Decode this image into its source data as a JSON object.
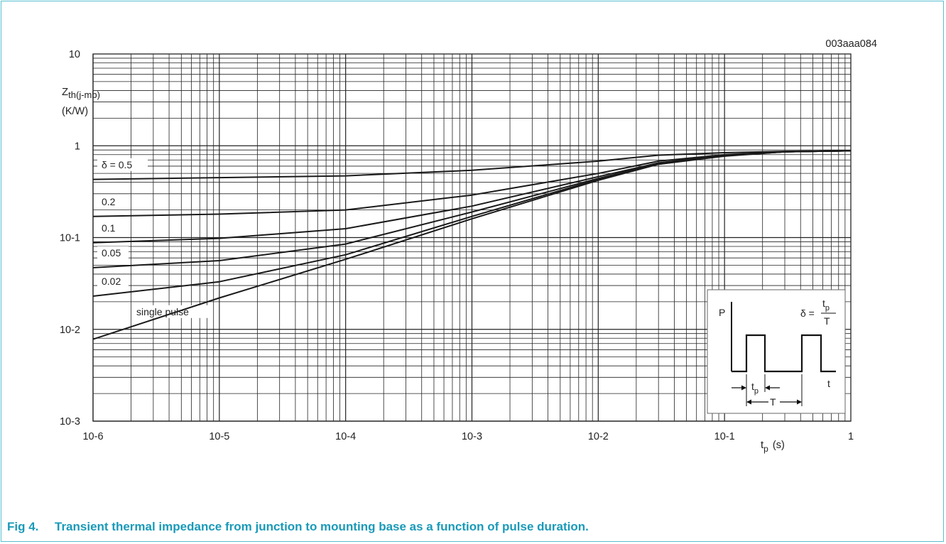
{
  "figure_id": "003aaa084",
  "caption": {
    "number": "Fig 4.",
    "text": "Transient thermal impedance from junction to mounting base as a function of pulse duration."
  },
  "inset": {
    "p_label": "P",
    "t_label": "t",
    "tp_label": "t",
    "tp_sub": "p",
    "T_label": "T",
    "delta_symbol": "δ =",
    "frac_num": "t",
    "frac_num_sub": "p",
    "frac_den": "T"
  },
  "chart_data": {
    "type": "line",
    "title": "",
    "xlabel": "t",
    "xlabel_sub": "p",
    "xlabel_unit": "(s)",
    "ylabel": "Z",
    "ylabel_sub": "th(j-mb)",
    "ylabel_unit": "(K/W)",
    "x_scale": "log",
    "y_scale": "log",
    "xlim": [
      1e-06,
      1
    ],
    "ylim": [
      0.001,
      10
    ],
    "grid": true,
    "x_ticks": [
      {
        "value": 1e-06,
        "base": "10",
        "exp": "-6"
      },
      {
        "value": 1e-05,
        "base": "10",
        "exp": "-5"
      },
      {
        "value": 0.0001,
        "base": "10",
        "exp": "-4"
      },
      {
        "value": 0.001,
        "base": "10",
        "exp": "-3"
      },
      {
        "value": 0.01,
        "base": "10",
        "exp": "-2"
      },
      {
        "value": 0.1,
        "base": "10",
        "exp": "-1"
      },
      {
        "value": 1,
        "base": "1",
        "exp": ""
      }
    ],
    "y_ticks": [
      {
        "value": 10,
        "base": "10",
        "exp": ""
      },
      {
        "value": 1,
        "base": "1",
        "exp": ""
      },
      {
        "value": 0.1,
        "base": "10",
        "exp": "-1"
      },
      {
        "value": 0.01,
        "base": "10",
        "exp": "-2"
      },
      {
        "value": 0.001,
        "base": "10",
        "exp": "-3"
      }
    ],
    "series": [
      {
        "name": "δ = 0.5",
        "label": "δ = 0.5",
        "x": [
          1e-06,
          1e-05,
          0.0001,
          0.001,
          0.01,
          0.03,
          0.1,
          0.3,
          1
        ],
        "y": [
          0.43,
          0.45,
          0.47,
          0.54,
          0.68,
          0.79,
          0.84,
          0.87,
          0.88
        ]
      },
      {
        "name": "0.2",
        "label": "0.2",
        "x": [
          1e-06,
          1e-05,
          0.0001,
          0.001,
          0.01,
          0.03,
          0.1,
          0.3,
          1
        ],
        "y": [
          0.17,
          0.18,
          0.2,
          0.29,
          0.5,
          0.68,
          0.8,
          0.86,
          0.88
        ]
      },
      {
        "name": "0.1",
        "label": "0.1",
        "x": [
          1e-06,
          1e-05,
          0.0001,
          0.001,
          0.01,
          0.03,
          0.1,
          0.3,
          1
        ],
        "y": [
          0.088,
          0.098,
          0.125,
          0.22,
          0.46,
          0.65,
          0.79,
          0.86,
          0.88
        ]
      },
      {
        "name": "0.05",
        "label": "0.05",
        "x": [
          1e-06,
          1e-05,
          0.0001,
          0.001,
          0.01,
          0.03,
          0.1,
          0.3,
          1
        ],
        "y": [
          0.047,
          0.056,
          0.085,
          0.19,
          0.44,
          0.64,
          0.78,
          0.86,
          0.88
        ]
      },
      {
        "name": "0.02",
        "label": "0.02",
        "x": [
          1e-06,
          1e-05,
          0.0001,
          0.001,
          0.01,
          0.03,
          0.1,
          0.3,
          1
        ],
        "y": [
          0.023,
          0.033,
          0.065,
          0.17,
          0.43,
          0.63,
          0.78,
          0.86,
          0.88
        ]
      },
      {
        "name": "single pulse",
        "label": "single pulse",
        "x": [
          1e-06,
          1e-05,
          0.0001,
          0.001,
          0.01,
          0.03,
          0.1,
          0.3,
          1
        ],
        "y": [
          0.0078,
          0.022,
          0.058,
          0.16,
          0.42,
          0.63,
          0.77,
          0.86,
          0.88
        ]
      }
    ]
  }
}
